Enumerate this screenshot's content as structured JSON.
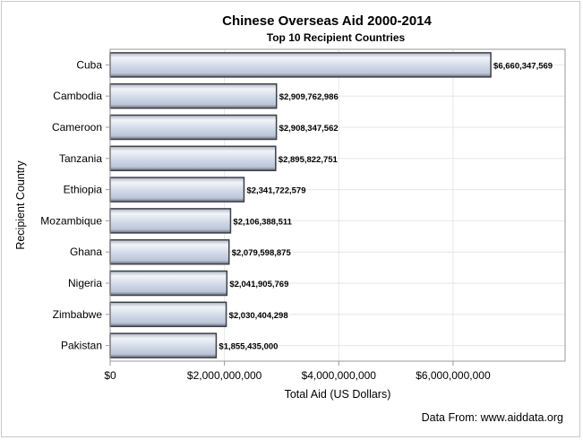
{
  "chart_data": {
    "type": "bar",
    "orientation": "horizontal",
    "title": "Chinese Overseas Aid 2000-2014",
    "subtitle": "Top 10 Recipient Countries",
    "xlabel": "Total Aid (US Dollars)",
    "ylabel": "Recipient Country",
    "footnote": "Data From: www.aiddata.org",
    "categories": [
      "Cuba",
      "Cambodia",
      "Cameroon",
      "Tanzania",
      "Ethiopia",
      "Mozambique",
      "Ghana",
      "Nigeria",
      "Zimbabwe",
      "Pakistan"
    ],
    "values": [
      6660347569,
      2909762986,
      2908347562,
      2895822751,
      2341722579,
      2106388511,
      2079598875,
      2041905769,
      2030404298,
      1855435000
    ],
    "data_labels": [
      "$6,660,347,569",
      "$2,909,762,986",
      "$2,908,347,562",
      "$2,895,822,751",
      "$2,341,722,579",
      "$2,106,388,511",
      "$2,079,598,875",
      "$2,041,905,769",
      "$2,030,404,298",
      "$1,855,435,000"
    ],
    "xlim": [
      0,
      7960000000
    ],
    "xticks": [
      0,
      2000000000,
      4000000000,
      6000000000
    ],
    "xtick_labels": [
      "$0",
      "$2,000,000,000",
      "$4,000,000,000",
      "$6,000,000,000"
    ],
    "grid": true,
    "colors": {
      "bar_fill": "#cdd6e6",
      "bar_edge": "#3c3f46",
      "grid": "#e6e6e6"
    }
  }
}
